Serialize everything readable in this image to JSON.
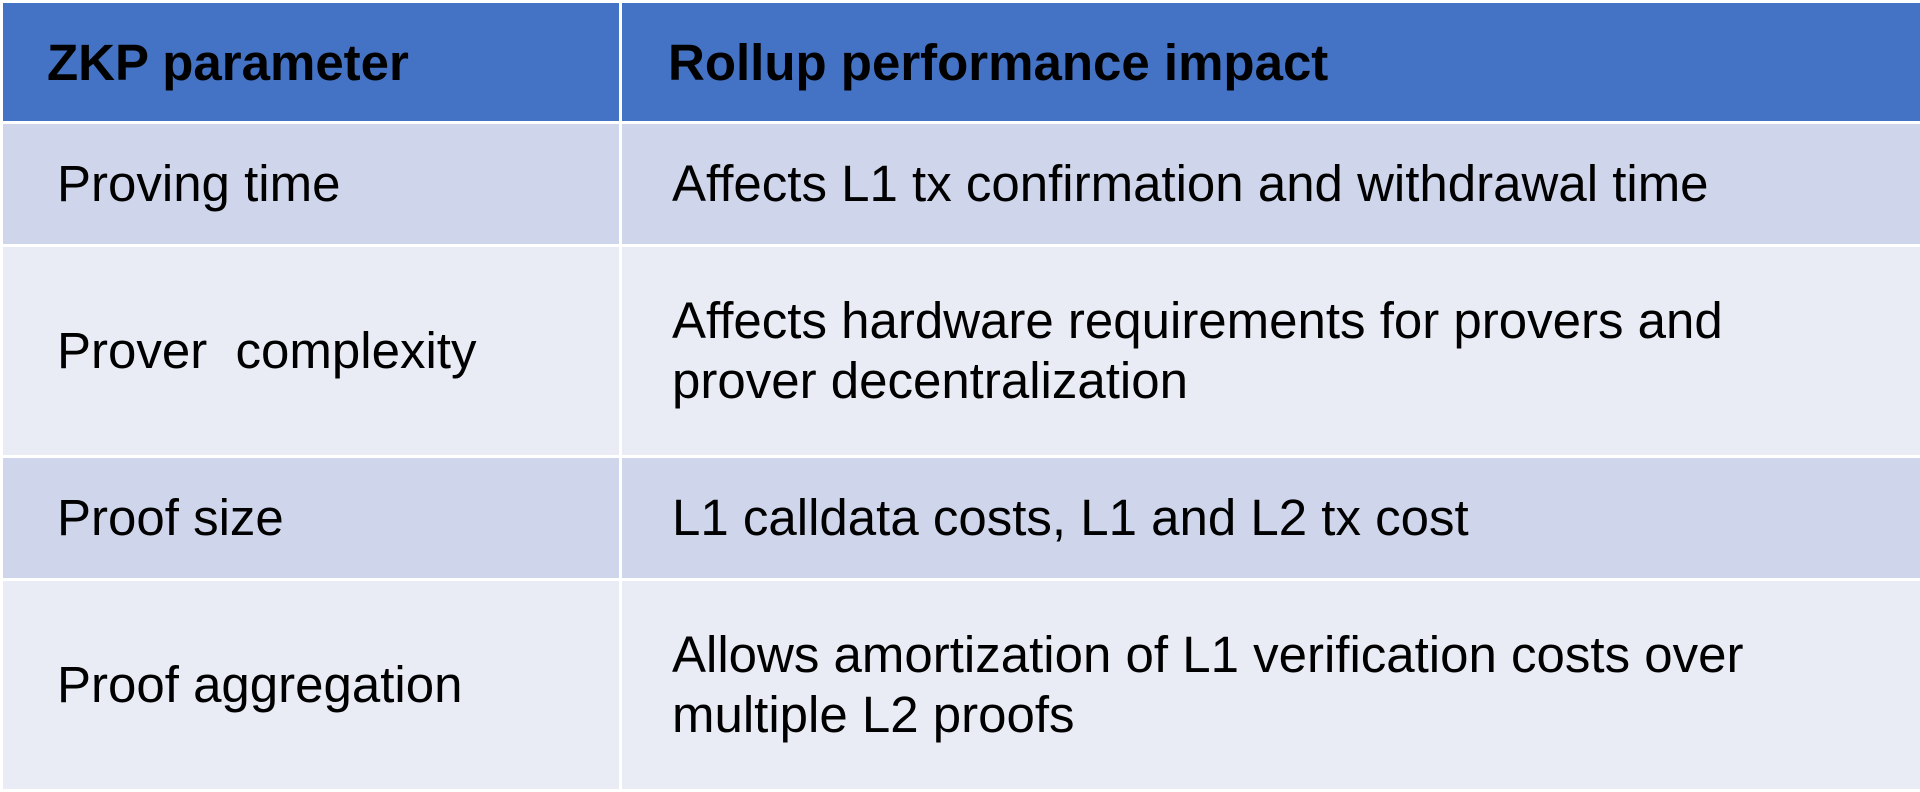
{
  "table": {
    "headers": {
      "parameter": "ZKP parameter",
      "impact": "Rollup performance impact"
    },
    "rows": [
      {
        "parameter": "Proving time",
        "impact": "Affects L1 tx confirmation and withdrawal time"
      },
      {
        "parameter": "Prover  complexity",
        "impact": "Affects hardware requirements for provers and prover decentralization"
      },
      {
        "parameter": "Proof size",
        "impact": "L1 calldata costs, L1 and L2 tx cost"
      },
      {
        "parameter": "Proof aggregation",
        "impact": "Allows amortization of L1 verification costs over multiple L2 proofs"
      }
    ]
  },
  "colors": {
    "header_bg": "#4472c4",
    "row_band_dark": "#cfd5ea",
    "row_band_light": "#e9ebf5",
    "grid_line": "#ffffff"
  }
}
